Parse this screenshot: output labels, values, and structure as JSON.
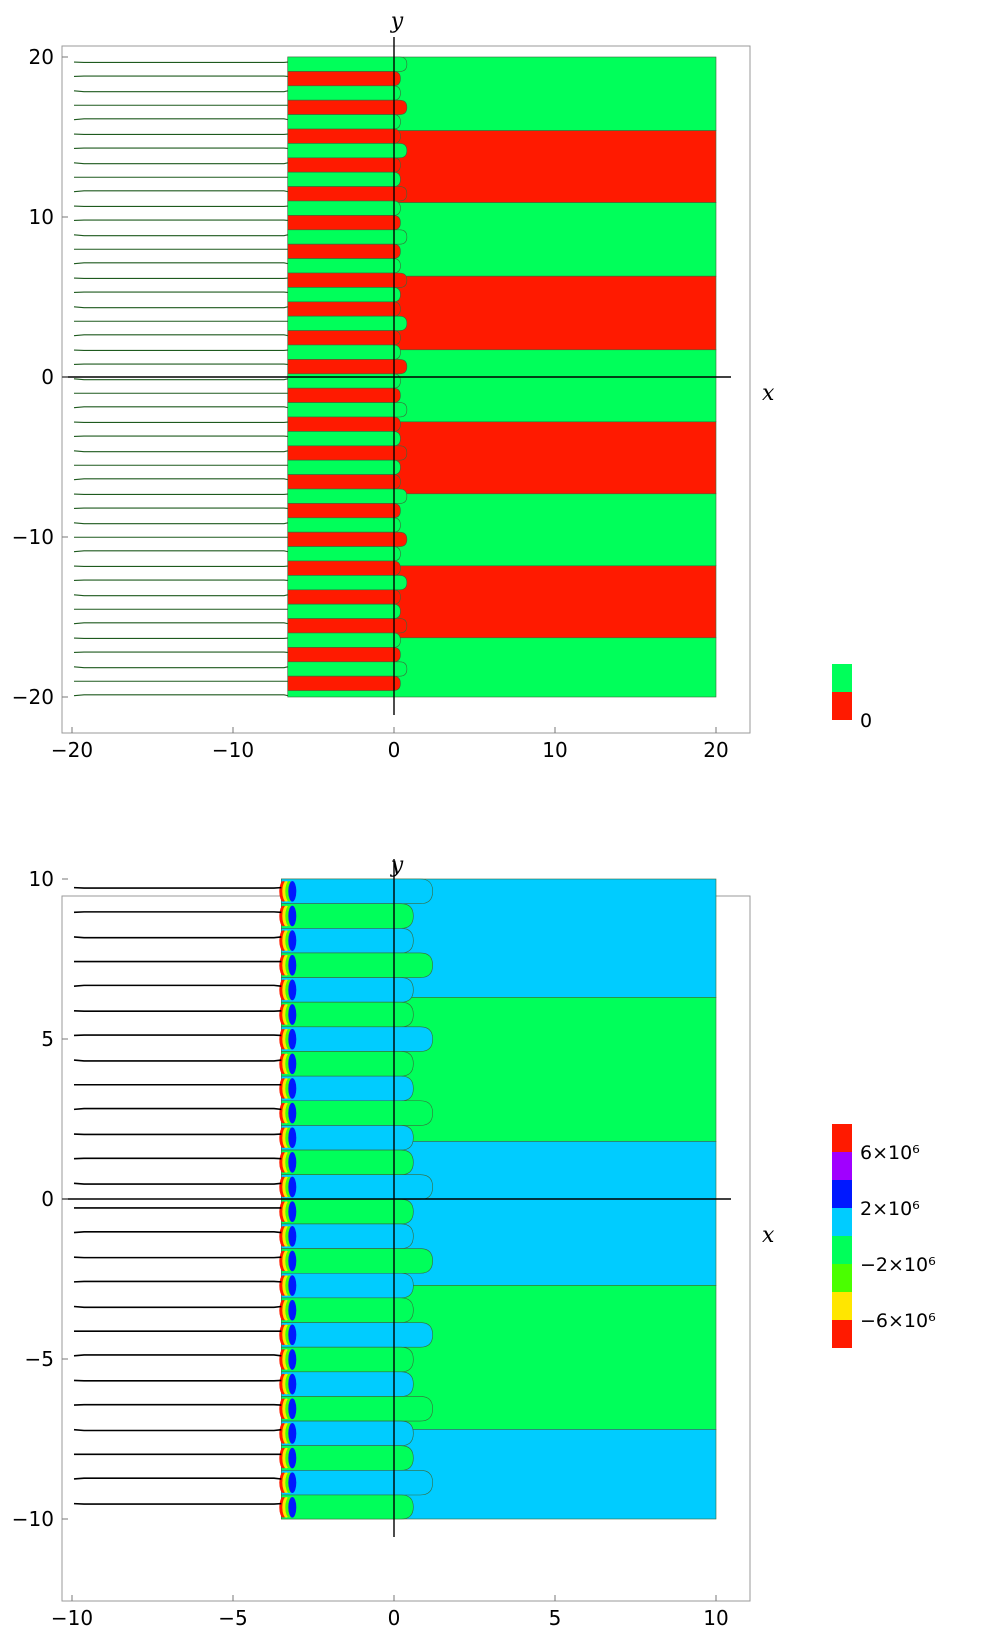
{
  "chart_data": [
    {
      "type": "contour",
      "xlabel": "x",
      "ylabel": "y",
      "xlim": [
        -20,
        20
      ],
      "ylim": [
        -20,
        20
      ],
      "x_ticks": [
        -20,
        -10,
        0,
        10,
        20
      ],
      "x_tick_labels": [
        "−20",
        "−10",
        "0",
        "10",
        "20"
      ],
      "y_ticks": [
        -20,
        -10,
        0,
        10,
        20
      ],
      "y_tick_labels": [
        "−20",
        "−10",
        "0",
        "10",
        "20"
      ],
      "blank_region_x_max": -6.6,
      "finger_tip_x_max": 0.8,
      "levels": [
        {
          "label": "",
          "color": "#00ff5a"
        },
        {
          "label": "0",
          "color": "#ff1a00"
        }
      ],
      "legend_labels": [
        "0"
      ],
      "right_band_boundaries_y": [
        20,
        15.4,
        10.9,
        6.3,
        1.7,
        -2.8,
        -7.3,
        -11.8,
        -16.3,
        -20
      ],
      "right_band_colors": [
        "#00ff5a",
        "#ff1a00",
        "#00ff5a",
        "#ff1a00",
        "#00ff5a",
        "#ff1a00",
        "#00ff5a",
        "#ff1a00",
        "#00ff5a"
      ],
      "finger_spacing_y": 0.9,
      "grid": false,
      "legend_position": "right"
    },
    {
      "type": "contour",
      "xlabel": "x",
      "ylabel": "y",
      "xlim": [
        -10,
        10
      ],
      "ylim": [
        -10,
        10
      ],
      "x_ticks": [
        -10,
        -5,
        0,
        5,
        10
      ],
      "x_tick_labels": [
        "−10",
        "−5",
        "0",
        "5",
        "10"
      ],
      "y_ticks": [
        -10,
        -5,
        0,
        5,
        10
      ],
      "y_tick_labels": [
        "−10",
        "−5",
        "0",
        "5",
        "10"
      ],
      "blank_region_x_max": -3.5,
      "finger_tip_x_max": 1.2,
      "levels": [
        {
          "label": "6×10⁶",
          "color": "#ff1a00"
        },
        {
          "label": "",
          "color": "#a000ff"
        },
        {
          "label": "2×10⁶",
          "color": "#0018ff"
        },
        {
          "label": "",
          "color": "#00ccff"
        },
        {
          "label": "−2×10⁶",
          "color": "#00ff5a"
        },
        {
          "label": "",
          "color": "#4aff00"
        },
        {
          "label": "−6×10⁶",
          "color": "#ffe600"
        },
        {
          "label": "",
          "color": "#ff1a00"
        }
      ],
      "legend_labels": [
        "6×10⁶",
        "2×10⁶",
        "−2×10⁶",
        "−6×10⁶"
      ],
      "right_band_boundaries_y": [
        10,
        6.3,
        1.8,
        -2.7,
        -7.2,
        -10
      ],
      "right_band_colors": [
        "#00ccff",
        "#00ff5a",
        "#00ccff",
        "#00ff5a",
        "#00ccff"
      ],
      "finger_spacing_y": 0.77,
      "grid": false,
      "legend_position": "right"
    }
  ]
}
